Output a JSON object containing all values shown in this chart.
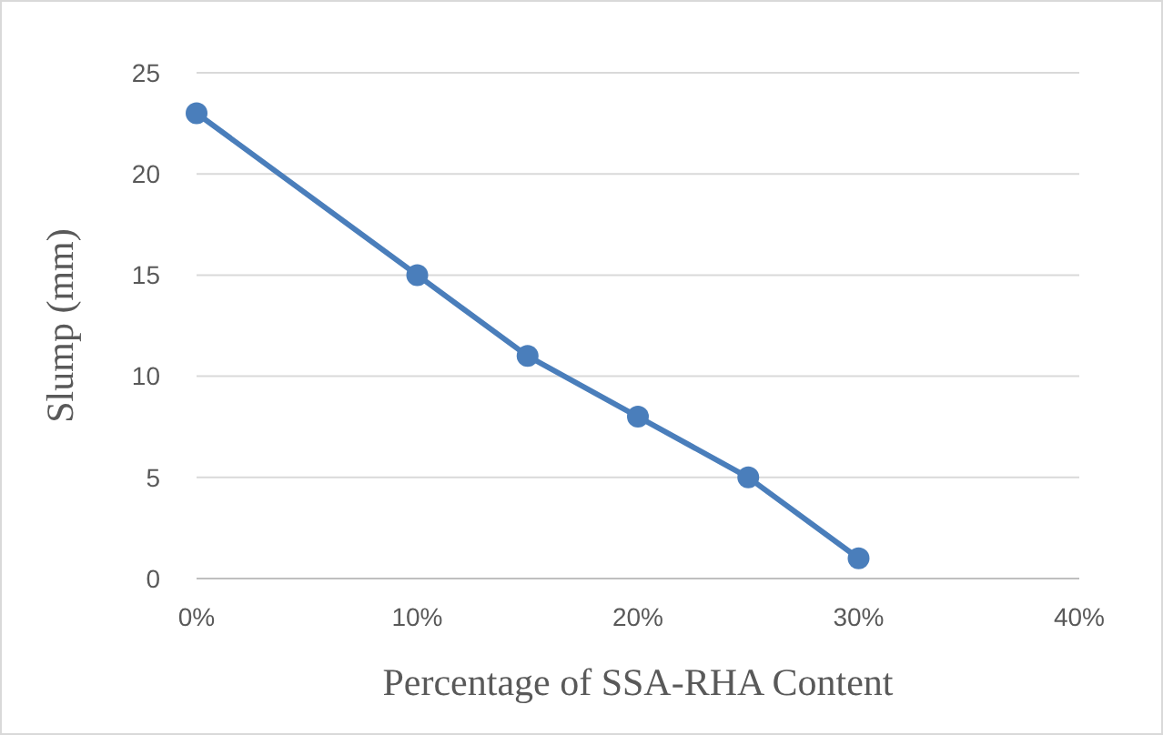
{
  "chart_data": {
    "type": "line",
    "xlabel": "Percentage of SSA-RHA Content",
    "ylabel": "Slump (mm)",
    "x": [
      0,
      10,
      15,
      20,
      25,
      30
    ],
    "series": [
      {
        "color": "#4a7ebb",
        "values": [
          23,
          15,
          11,
          8,
          5,
          1
        ]
      }
    ],
    "xlim": [
      0,
      40
    ],
    "xticks": [
      {
        "value": 0,
        "label": "0%"
      },
      {
        "value": 10,
        "label": "10%"
      },
      {
        "value": 20,
        "label": "20%"
      },
      {
        "value": 30,
        "label": "30%"
      },
      {
        "value": 40,
        "label": "40%"
      }
    ],
    "ylim": [
      0,
      25
    ],
    "yticks": [
      0,
      5,
      10,
      15,
      20,
      25
    ],
    "grid": "y",
    "marker": "circle",
    "line_style": "solid"
  }
}
